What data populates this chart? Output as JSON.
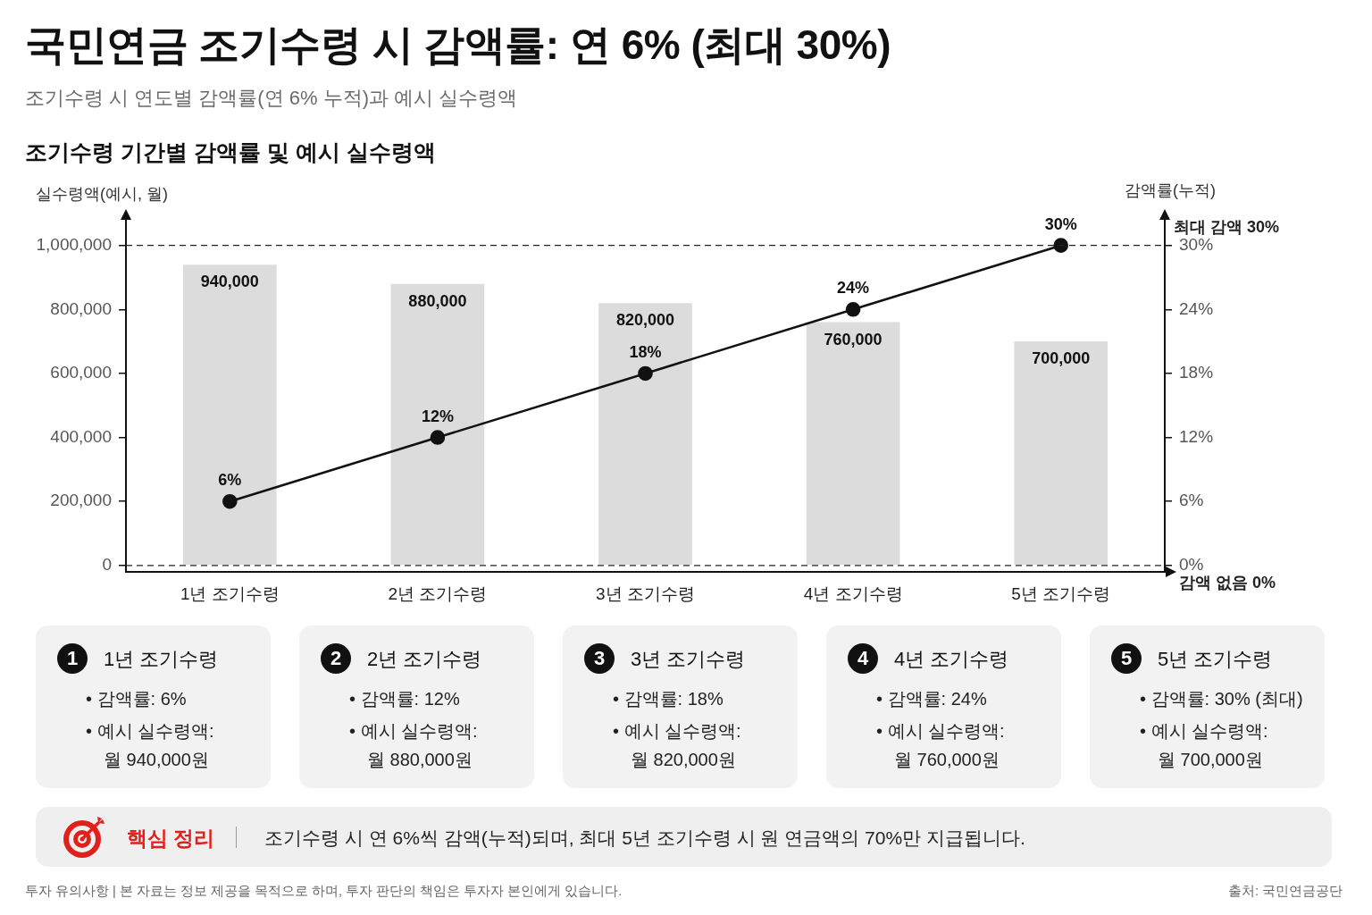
{
  "chart_data": [
    {
      "type": "bar",
      "title": "국민연금 조기수령 시 감액률: 연 6% (최대 30%)",
      "subtitle": "조기수령 시 연도별 감액률(연 6% 누적)과 예시 실수령액",
      "annotations": [
        "조기수령 기간별 감액률 및 예시 실수령액"
      ],
      "ylabel": "실수령액(예시, 월)",
      "y2label": "감액률(누적)",
      "categories": [
        "1년 조기수령",
        "2년 조기수령",
        "3년 조기수령",
        "4년 조기수령",
        "5년 조기수령"
      ],
      "series": [
        {
          "type": "bar",
          "color": "#dcdcdc",
          "values": [
            940000,
            880000,
            820000,
            760000,
            700000
          ],
          "value_labels": [
            "940,000",
            "880,000",
            "820,000",
            "760,000",
            "700,000"
          ]
        },
        {
          "type": "line",
          "axis": "y2",
          "color": "#111111",
          "values": [
            6,
            12,
            18,
            24,
            30
          ],
          "value_labels": [
            "6%",
            "12%",
            "18%",
            "24%",
            "30%"
          ]
        }
      ],
      "ylim": [
        -20000,
        1080000
      ],
      "yticks": [
        0,
        {
          "value": 200000,
          "label": "200,000"
        },
        {
          "value": 400000,
          "label": "400,000"
        },
        {
          "value": 600000,
          "label": "600,000"
        },
        {
          "value": 800000,
          "label": "800,000"
        },
        {
          "value": 1000000,
          "label": "1,000,000"
        }
      ],
      "y2lim": [
        -0.6,
        32.4
      ],
      "y2ticks": [
        {
          "value": 0,
          "label": "0%"
        },
        {
          "value": 6,
          "label": "6%"
        },
        {
          "value": 12,
          "label": "12%"
        },
        {
          "value": 18,
          "label": "18%"
        },
        {
          "value": 24,
          "label": "24%"
        },
        {
          "value": 30,
          "label": "30%"
        }
      ],
      "ref_lines": [
        {
          "axis": "y2",
          "value": 30,
          "label": "최대 감액 30%",
          "color": "#222222",
          "line_style": "dashed"
        },
        {
          "axis": "y2",
          "value": 0,
          "label": "감액 없음 0%",
          "color": "#222222",
          "line_style": "dashed"
        }
      ],
      "marker": "circle",
      "line_style": "solid"
    },
    {
      "type": "other",
      "title": "1년 조기수령",
      "annotations": [
        "1",
        "• 감액률: 6%",
        "• 예시 실수령액:",
        "월 940,000원"
      ]
    },
    {
      "type": "other",
      "title": "2년 조기수령",
      "annotations": [
        "2",
        "• 감액률: 12%",
        "• 예시 실수령액:",
        "월 880,000원"
      ]
    },
    {
      "type": "other",
      "title": "3년 조기수령",
      "annotations": [
        "3",
        "• 감액률: 18%",
        "• 예시 실수령액:",
        "월 820,000원"
      ]
    },
    {
      "type": "other",
      "title": "4년 조기수령",
      "annotations": [
        "4",
        "• 감액률: 24%",
        "• 예시 실수령액:",
        "월 760,000원"
      ]
    },
    {
      "type": "other",
      "title": "5년 조기수령",
      "annotations": [
        "5",
        "• 감액률: 30% (최대)",
        "• 예시 실수령액:",
        "월 700,000원"
      ]
    },
    {
      "type": "other",
      "title": "핵심 정리",
      "annotations": [
        "조기수령 시 연 6%씩 감액(누적)되며, 최대 5년 조기수령 시 원 연금액의 70%만 지급됩니다.",
        "투자 유의사항 | 본 자료는 정보 제공을 목적으로 하며, 투자 판단의 책임은 투자자 본인에게 있습니다.",
        "출처: 국민연금공단"
      ]
    }
  ]
}
